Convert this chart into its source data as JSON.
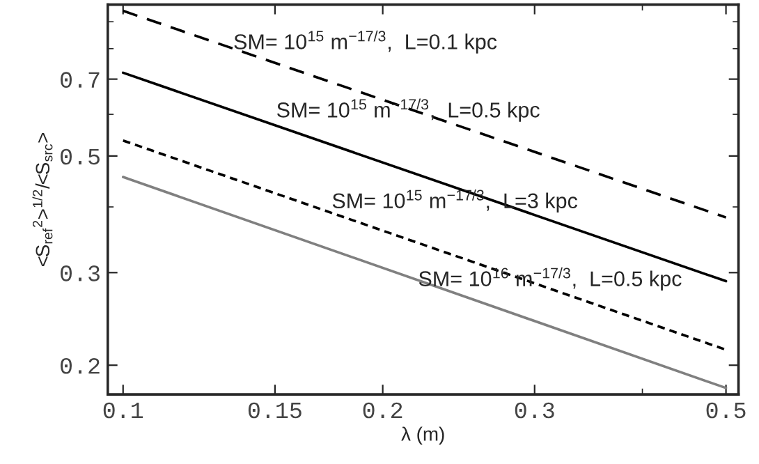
{
  "chart_data": {
    "type": "line",
    "xlabel": "λ (m)",
    "ylabel": "<S$_{ref}$$^{2}$>$^{1/2}$/<S$_{src}$>",
    "log": "xy",
    "grid": false,
    "legend": false,
    "marker": "none",
    "x": [
      0.1,
      0.5
    ],
    "series": [
      {
        "color": "#000000",
        "line_style": "dashed",
        "values": [
          0.944,
          0.382
        ]
      },
      {
        "color": "#000000",
        "line_style": "solid",
        "values": [
          0.72,
          0.289
        ]
      },
      {
        "color": "#000000",
        "line_style": "dotted",
        "values": [
          0.535,
          0.214
        ]
      },
      {
        "color": "#808080",
        "line_style": "solid",
        "values": [
          0.456,
          0.181
        ]
      }
    ],
    "xlim": [
      0.096,
      0.517
    ],
    "xticks": [
      0.1,
      0.15,
      0.2,
      0.3,
      0.5
    ],
    "ylim": [
      0.176,
      0.97
    ],
    "yticks": [
      0.2,
      0.3,
      0.5,
      0.7
    ],
    "annotations": [
      "SM= 10$^{15}$ m$^{−17/3}$,  L=0.1 kpc",
      "SM= 10$^{15}$ m$^{−17/3}$,  L=0.5 kpc",
      "SM= 10$^{15}$ m$^{−17/3}$,  L=3 kpc",
      "SM= 10$^{16}$ m$^{−17/3}$,  L=0.5 kpc"
    ]
  }
}
